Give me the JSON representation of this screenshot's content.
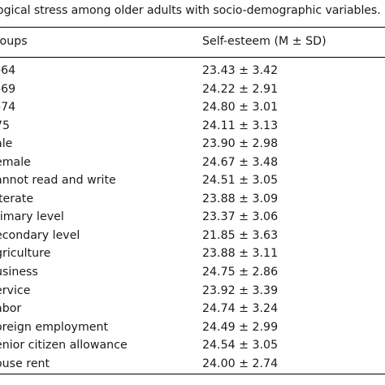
{
  "caption": "ogical stress among older adults with socio-demographic variables.",
  "header": {
    "groups_label": "roups",
    "self_esteem_label": "Self-esteem (M ± SD)"
  },
  "rows": [
    {
      "group": "–64",
      "value": "23.43 ± 3.42"
    },
    {
      "group": "–69",
      "value": "24.22 ± 2.91"
    },
    {
      "group": "–74",
      "value": "24.80 ± 3.01"
    },
    {
      "group": "75",
      "value": "24.11 ± 3.13"
    },
    {
      "group": "ale",
      "value": "23.90 ± 2.98"
    },
    {
      "group": "emale",
      "value": "24.67 ± 3.48"
    },
    {
      "group": "annot read and write",
      "value": "24.51 ± 3.05"
    },
    {
      "group": "iterate",
      "value": "23.88 ± 3.09"
    },
    {
      "group": "rimary level",
      "value": "23.37 ± 3.06"
    },
    {
      "group": "econdary level",
      "value": "21.85 ± 3.63"
    },
    {
      "group": "griculture",
      "value": "23.88 ± 3.11"
    },
    {
      "group": "usiness",
      "value": "24.75 ± 2.86"
    },
    {
      "group": "ervice",
      "value": "23.92 ± 3.39"
    },
    {
      "group": "abor",
      "value": "24.74 ± 3.24"
    },
    {
      "group": "oreign employment",
      "value": "24.49 ± 2.99"
    },
    {
      "group": "enior citizen allowance",
      "value": "24.54 ± 3.05"
    },
    {
      "group": "ouse rent",
      "value": "24.00 ± 2.74"
    }
  ]
}
